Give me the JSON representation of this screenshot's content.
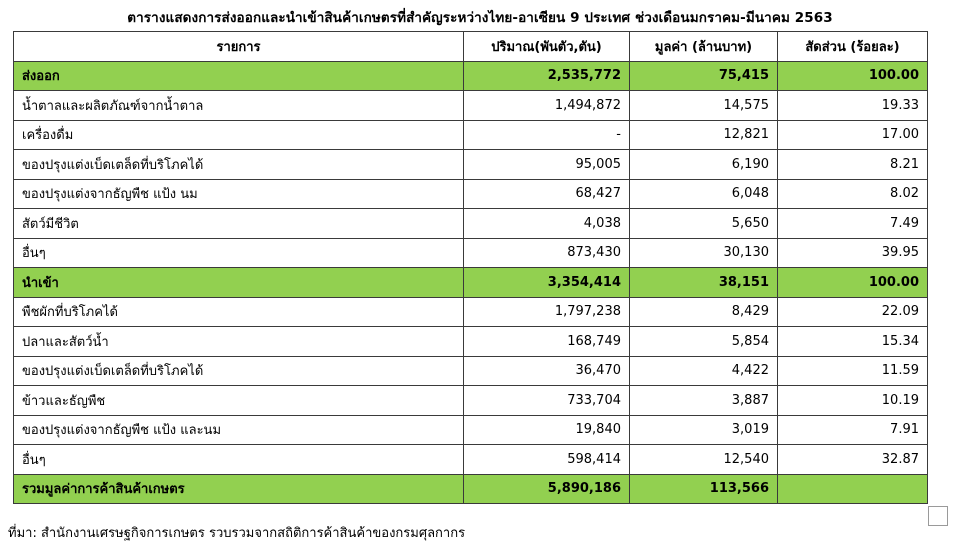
{
  "title": "ตารางแสดงการส่งออกและนำเข้าสินค้าเกษตรที่สำคัญระหว่างไทย-อาเซียน 9 ประเทศ ช่วงเดือนมกราคม-มีนาคม 2563",
  "table": {
    "headers": [
      "รายการ",
      "ปริมาณ(พันตัว,ตัน)",
      "มูลค่า (ล้านบาท)",
      "สัดส่วน (ร้อยละ)"
    ],
    "rows": [
      {
        "label": "ส่งออก",
        "qty": "2,535,772",
        "value": "75,415",
        "share": "100.00",
        "highlight": true
      },
      {
        "label": "น้ำตาลและผลิตภัณฑ์จากน้ำตาล",
        "qty": "1,494,872",
        "value": "14,575",
        "share": "19.33"
      },
      {
        "label": "เครื่องดื่ม",
        "qty": "-",
        "value": "12,821",
        "share": "17.00"
      },
      {
        "label": "ของปรุงแต่งเบ็ดเตล็ดที่บริโภคได้",
        "qty": "95,005",
        "value": "6,190",
        "share": "8.21"
      },
      {
        "label": "ของปรุงแต่งจากธัญพืช แป้ง นม",
        "qty": "68,427",
        "value": "6,048",
        "share": "8.02"
      },
      {
        "label": "สัตว์มีชีวิต",
        "qty": "4,038",
        "value": "5,650",
        "share": "7.49"
      },
      {
        "label": "อื่นๆ",
        "qty": "873,430",
        "value": "30,130",
        "share": "39.95"
      },
      {
        "label": "นำเข้า",
        "qty": "3,354,414",
        "value": "38,151",
        "share": "100.00",
        "highlight": true
      },
      {
        "label": "พืชผักที่บริโภคได้",
        "qty": "1,797,238",
        "value": "8,429",
        "share": "22.09"
      },
      {
        "label": "ปลาและสัตว์น้ำ",
        "qty": "168,749",
        "value": "5,854",
        "share": "15.34"
      },
      {
        "label": "ของปรุงแต่งเบ็ดเตล็ดที่บริโภคได้",
        "qty": "36,470",
        "value": "4,422",
        "share": "11.59"
      },
      {
        "label": "ข้าวและธัญพืช",
        "qty": "733,704",
        "value": "3,887",
        "share": "10.19"
      },
      {
        "label": "ของปรุงแต่งจากธัญพืช แป้ง และนม",
        "qty": "19,840",
        "value": "3,019",
        "share": "7.91"
      },
      {
        "label": "อื่นๆ",
        "qty": "598,414",
        "value": "12,540",
        "share": "32.87"
      },
      {
        "label": "รวมมูลค่าการค้าสินค้าเกษตร",
        "qty": "5,890,186",
        "value": "113,566",
        "share": "",
        "highlight": true
      }
    ]
  },
  "source": "ที่มา: สำนักงานเศรษฐกิจการเกษตร รวบรวมจากสถิติการค้าสินค้าของกรมศุลกากร",
  "highlight_color": "#92d050"
}
